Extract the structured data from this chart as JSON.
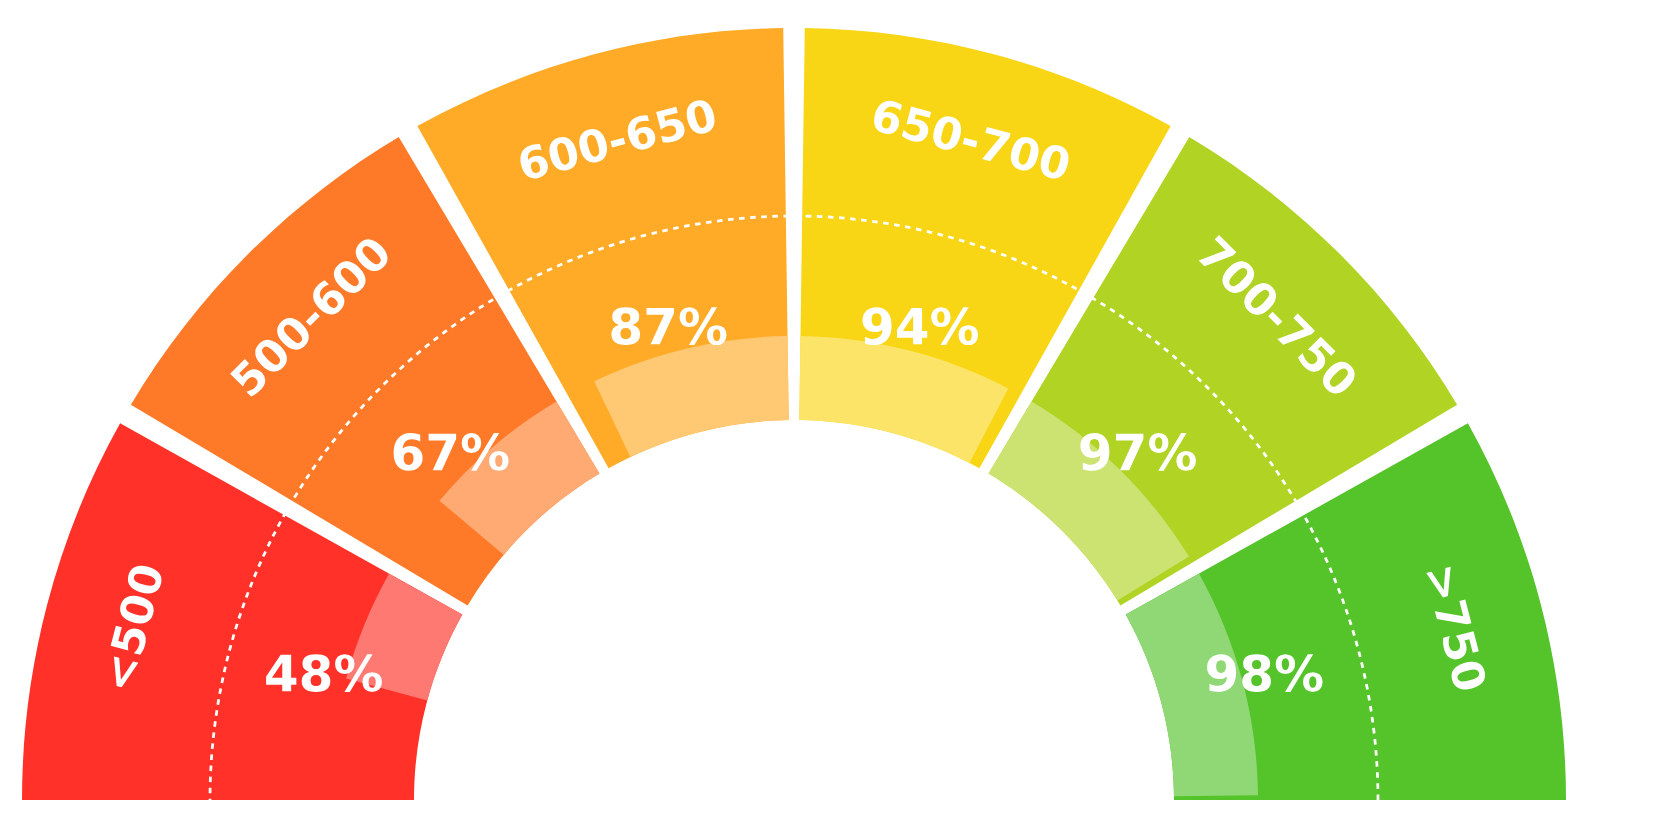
{
  "chart_data": {
    "type": "other",
    "values": [
      48,
      67,
      87,
      94,
      97,
      98
    ],
    "categories": [
      "<500",
      "500-600",
      "600-650",
      "650-700",
      "700-750",
      ">750"
    ],
    "value_labels": [
      "48%",
      "67%",
      "87%",
      "94%",
      "97%",
      "98%"
    ],
    "colors": [
      "#ff3128",
      "#ff7a28",
      "#ffab27",
      "#f9d615",
      "#b0d324",
      "#55c32a"
    ]
  }
}
